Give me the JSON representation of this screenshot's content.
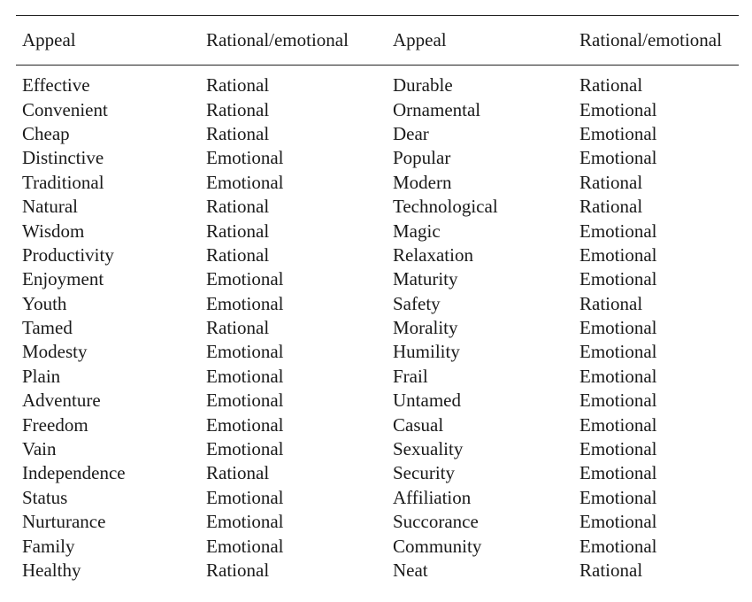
{
  "headers": [
    "Appeal",
    "Rational/emotional",
    "Appeal",
    "Rational/emotional"
  ],
  "rows": [
    [
      "Effective",
      "Rational",
      "Durable",
      "Rational"
    ],
    [
      "Convenient",
      "Rational",
      "Ornamental",
      "Emotional"
    ],
    [
      "Cheap",
      "Rational",
      "Dear",
      "Emotional"
    ],
    [
      "Distinctive",
      "Emotional",
      "Popular",
      "Emotional"
    ],
    [
      "Traditional",
      "Emotional",
      "Modern",
      "Rational"
    ],
    [
      "Natural",
      "Rational",
      "Technological",
      "Rational"
    ],
    [
      "Wisdom",
      "Rational",
      "Magic",
      "Emotional"
    ],
    [
      "Productivity",
      "Rational",
      "Relaxation",
      "Emotional"
    ],
    [
      "Enjoyment",
      "Emotional",
      "Maturity",
      "Emotional"
    ],
    [
      "Youth",
      "Emotional",
      "Safety",
      "Rational"
    ],
    [
      "Tamed",
      "Rational",
      "Morality",
      "Emotional"
    ],
    [
      "Modesty",
      "Emotional",
      "Humility",
      "Emotional"
    ],
    [
      "Plain",
      "Emotional",
      "Frail",
      "Emotional"
    ],
    [
      "Adventure",
      "Emotional",
      "Untamed",
      "Emotional"
    ],
    [
      "Freedom",
      "Emotional",
      "Casual",
      "Emotional"
    ],
    [
      "Vain",
      "Emotional",
      "Sexuality",
      "Emotional"
    ],
    [
      "Independence",
      "Rational",
      "Security",
      "Emotional"
    ],
    [
      "Status",
      "Emotional",
      "Affiliation",
      "Emotional"
    ],
    [
      "Nurturance",
      "Emotional",
      "Succorance",
      "Emotional"
    ],
    [
      "Family",
      "Emotional",
      "Community",
      "Emotional"
    ],
    [
      "Healthy",
      "Rational",
      "Neat",
      "Rational"
    ]
  ]
}
